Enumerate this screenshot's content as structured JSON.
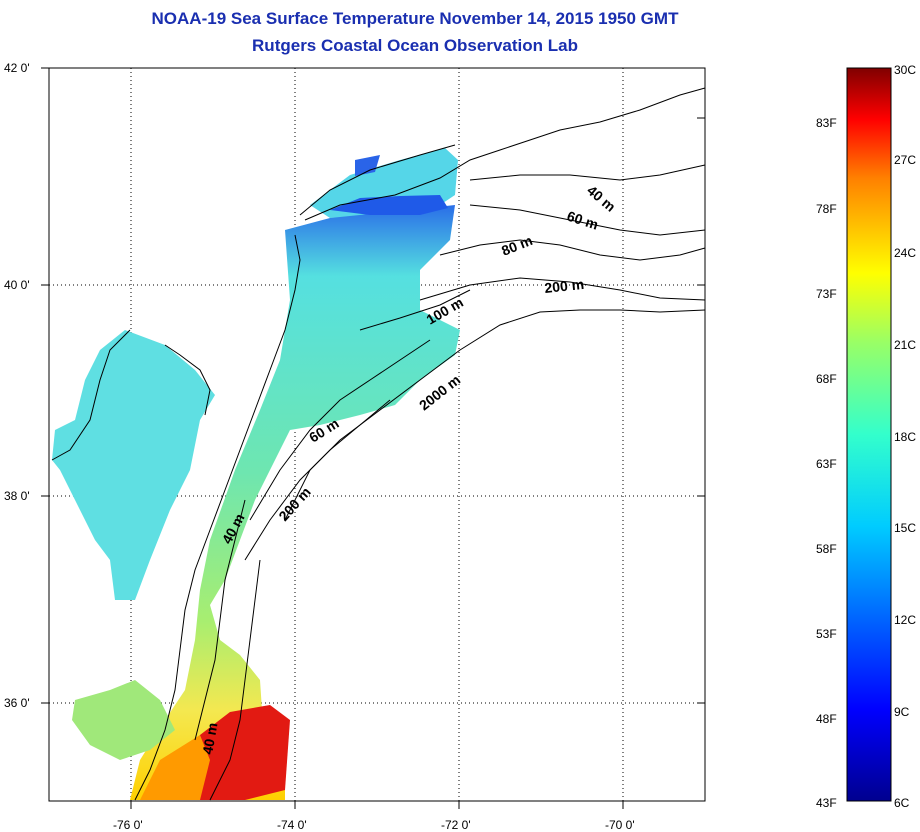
{
  "header": {
    "title": "NOAA-19 Sea Surface Temperature November 14, 2015 1950 GMT",
    "subtitle": "Rutgers Coastal Ocean Observation Lab"
  },
  "map": {
    "lon_ticks": [
      "-76 0'",
      "-74 0'",
      "-72 0'",
      "-70 0'"
    ],
    "lat_ticks": [
      "42 0'",
      "40 0'",
      "38 0'",
      "36 0'"
    ],
    "grid": "dotted",
    "contour_labels": [
      "40 m",
      "60 m",
      "80 m",
      "200 m",
      "100 m",
      "2000 m",
      "60 m",
      "200 m",
      "40 m",
      "40 m"
    ]
  },
  "colorbar": {
    "celsius_labels": [
      "30C",
      "27C",
      "24C",
      "21C",
      "18C",
      "15C",
      "12C",
      "9C",
      "6C"
    ],
    "fahrenheit_labels": [
      "83F",
      "78F",
      "73F",
      "68F",
      "63F",
      "58F",
      "53F",
      "48F",
      "43F"
    ],
    "colors": [
      "#00008f",
      "#0000ff",
      "#0080ff",
      "#00ffff",
      "#80ff80",
      "#ffff00",
      "#ff8000",
      "#ff0000",
      "#800000"
    ]
  }
}
